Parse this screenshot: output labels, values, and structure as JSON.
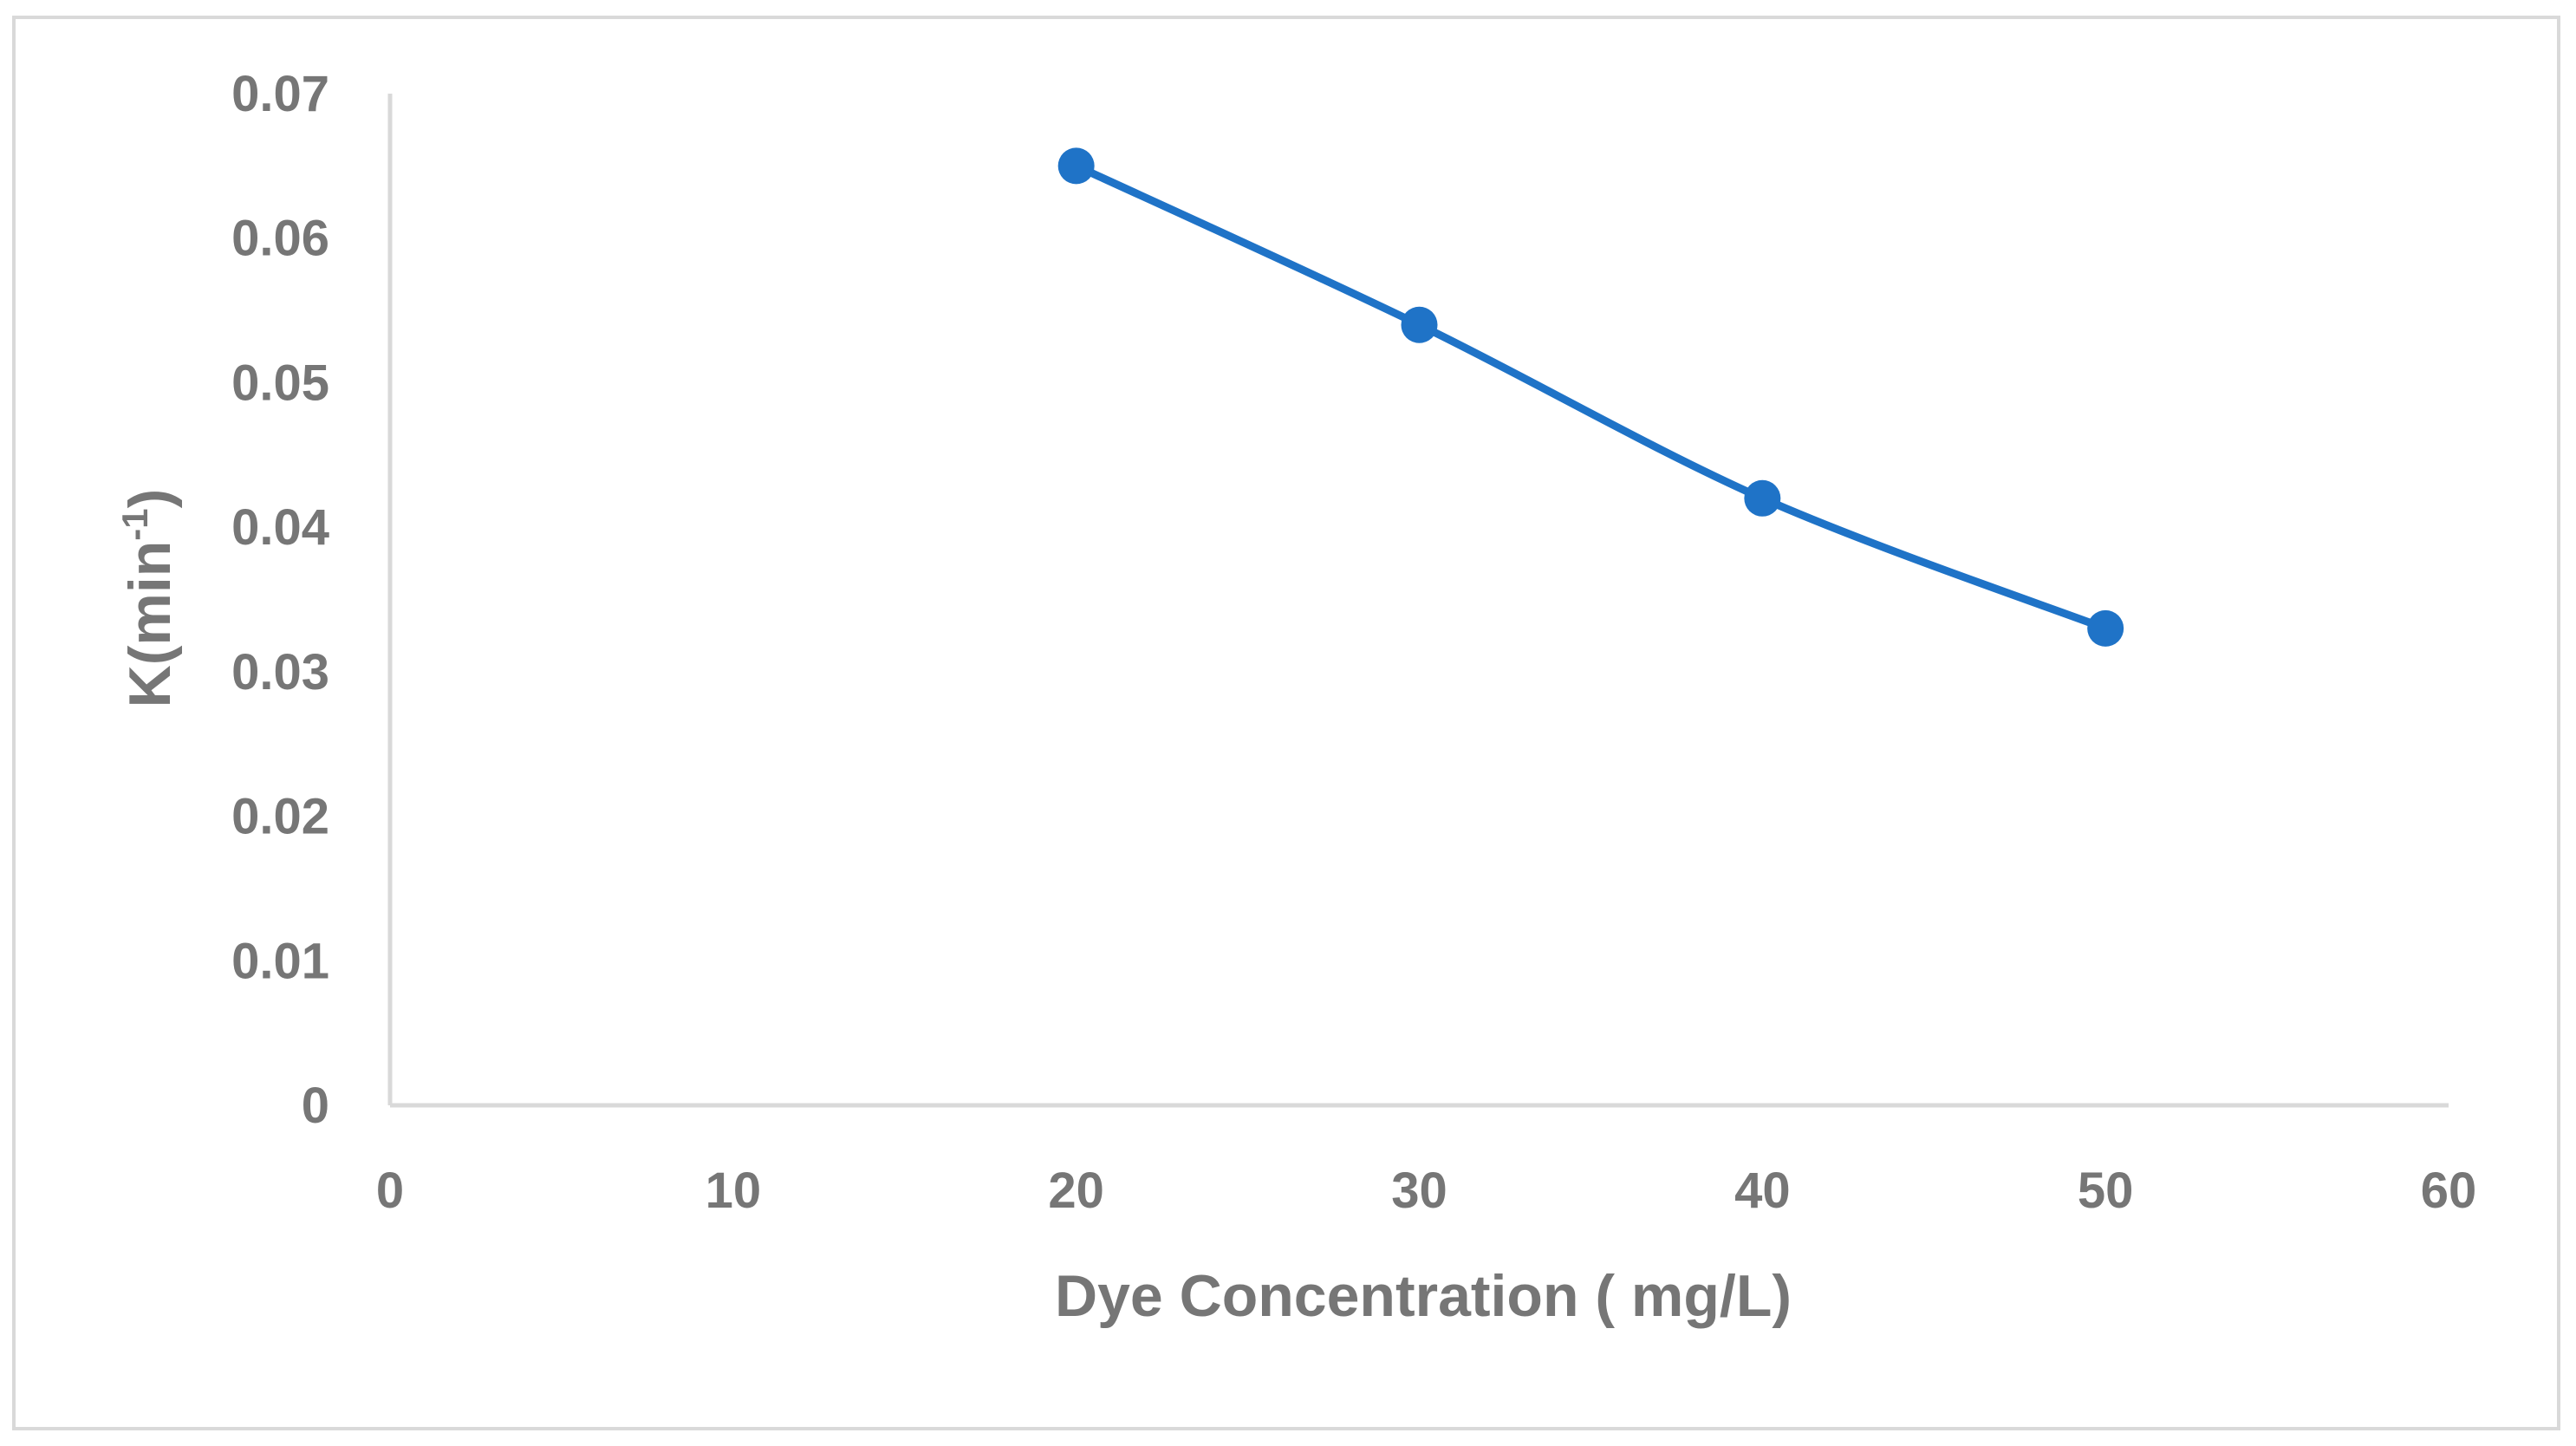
{
  "chart_data": {
    "type": "line",
    "title": "",
    "xlabel": "Dye Concentration ( mg/L)",
    "ylabel": {
      "main": "K(min",
      "superscript": "-1",
      "close": ")"
    },
    "xlim": [
      0,
      60
    ],
    "ylim": [
      0,
      0.07
    ],
    "xticks": [
      "0",
      "10",
      "20",
      "30",
      "40",
      "50",
      "60"
    ],
    "yticks": [
      "0",
      "0.01",
      "0.02",
      "0.03",
      "0.04",
      "0.05",
      "0.06",
      "0.07"
    ],
    "grid": false,
    "legend": "none",
    "smooth": true,
    "series": [
      {
        "x": [
          20,
          30,
          40,
          50
        ],
        "y": [
          0.065,
          0.054,
          0.042,
          0.033
        ],
        "color": "#1f73c7"
      }
    ]
  },
  "colors": {
    "axis": "#d9d9d9",
    "text": "#767676",
    "series": "#1f73c7"
  }
}
